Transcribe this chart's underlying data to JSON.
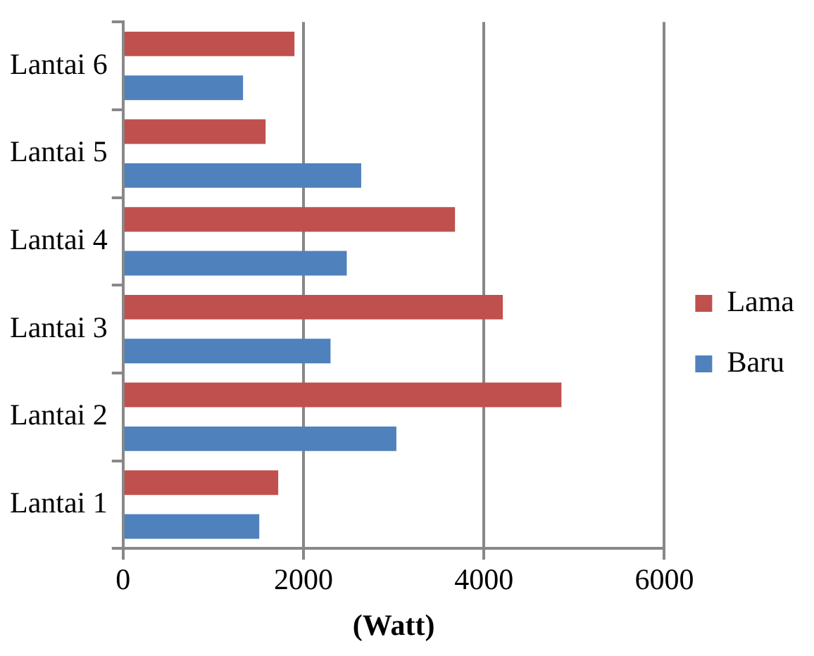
{
  "chart_data": {
    "type": "bar",
    "orientation": "horizontal",
    "xlabel": "(Watt)",
    "categories": [
      "Lantai 6",
      "Lantai 5",
      "Lantai 4",
      "Lantai 3",
      "Lantai 2",
      "Lantai 1"
    ],
    "series": [
      {
        "name": "Lama",
        "color": "#c0504d",
        "values": [
          1900,
          1580,
          3680,
          4210,
          4860,
          1720
        ]
      },
      {
        "name": "Baru",
        "color": "#4f81bd",
        "values": [
          1330,
          2640,
          2480,
          2300,
          3030,
          1510
        ]
      }
    ],
    "xlim": [
      0,
      6000
    ],
    "xticks": [
      0,
      2000,
      4000,
      6000
    ],
    "grid": "x",
    "legend": "right"
  }
}
